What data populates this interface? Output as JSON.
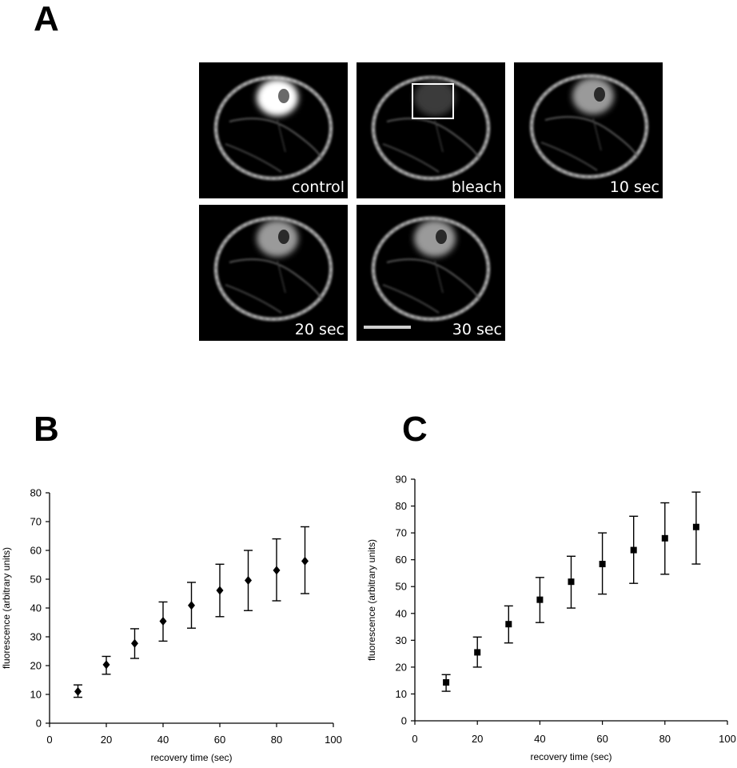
{
  "panels": {
    "a": "A",
    "b": "B",
    "c": "C"
  },
  "micrographs": [
    {
      "caption": "control",
      "state": "control"
    },
    {
      "caption": "bleach",
      "state": "bleach"
    },
    {
      "caption": "10 sec",
      "state": "recovery"
    },
    {
      "caption": "20 sec",
      "state": "recovery"
    },
    {
      "caption": "30 sec",
      "state": "recovery"
    }
  ],
  "chart_data": [
    {
      "type": "scatter",
      "panel": "B",
      "marker": "diamond",
      "xlabel": "recovery time (sec)",
      "ylabel": "fluorescence (arbitrary units)",
      "xlim": [
        0,
        100
      ],
      "ylim": [
        0,
        80
      ],
      "xticks": [
        0,
        20,
        40,
        60,
        80,
        100
      ],
      "yticks": [
        0,
        10,
        20,
        30,
        40,
        50,
        60,
        70,
        80
      ],
      "grid": false,
      "x": [
        10,
        20,
        30,
        40,
        50,
        60,
        70,
        80,
        90
      ],
      "y": [
        11,
        20.3,
        27.7,
        35.4,
        40.9,
        46.1,
        49.6,
        53.1,
        56.3
      ],
      "err_low": [
        9,
        17,
        22.5,
        28.5,
        33,
        37,
        39.1,
        42.5,
        45
      ],
      "err_high": [
        13.3,
        23.2,
        32.8,
        42.1,
        48.9,
        55.2,
        60,
        64,
        68.2
      ]
    },
    {
      "type": "scatter",
      "panel": "C",
      "marker": "square",
      "xlabel": "recovery time (sec)",
      "ylabel": "fluorescence (arbitrary units)",
      "xlim": [
        0,
        100
      ],
      "ylim": [
        0,
        90
      ],
      "xticks": [
        0,
        20,
        40,
        60,
        80,
        100
      ],
      "yticks": [
        0,
        10,
        20,
        30,
        40,
        50,
        60,
        70,
        80,
        90
      ],
      "grid": false,
      "x": [
        10,
        20,
        30,
        40,
        50,
        60,
        70,
        80,
        90
      ],
      "y": [
        14.3,
        25.5,
        36,
        45.1,
        51.8,
        58.4,
        63.6,
        68,
        72.2
      ],
      "err_low": [
        11,
        20,
        29,
        36.6,
        42,
        47.2,
        51.2,
        54.6,
        58.4
      ],
      "err_high": [
        17.2,
        31.2,
        42.8,
        53.4,
        61.3,
        70,
        76.2,
        81.2,
        85.2
      ]
    }
  ]
}
